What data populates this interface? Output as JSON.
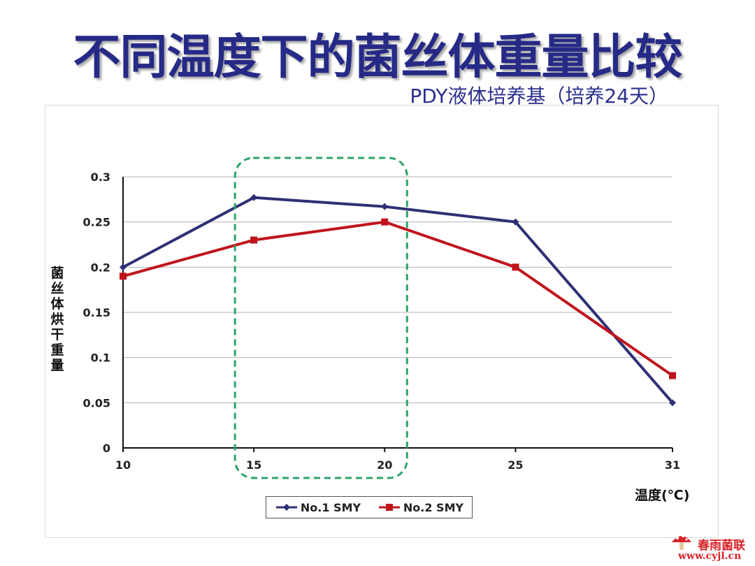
{
  "slide": {
    "title": "不同温度下的菌丝体重量比较",
    "subtitle": "PDY液体培养基（培养24天）"
  },
  "watermark": {
    "name": "春雨菌联",
    "url": "www.cyjl.cn"
  },
  "chart_data": {
    "type": "line",
    "x": [
      10,
      15,
      20,
      25,
      31
    ],
    "categories": [
      "10",
      "15",
      "20",
      "25",
      "31"
    ],
    "series": [
      {
        "name": "No.1 SMY",
        "values": [
          0.2,
          0.277,
          0.267,
          0.25,
          0.05
        ],
        "color": "#2e3075",
        "marker": "diamond"
      },
      {
        "name": "No.2 SMY",
        "values": [
          0.19,
          0.23,
          0.25,
          0.2,
          0.08
        ],
        "color": "#c0141c",
        "marker": "square"
      }
    ],
    "xlabel": "温度(℃)",
    "ylabel": "菌丝体烘干重量",
    "ylim": [
      0,
      0.3
    ],
    "yticks": [
      "0",
      "0.05",
      "0.1",
      "0.15",
      "0.2",
      "0.25",
      "0.3"
    ],
    "grid": true,
    "legend": "bottom",
    "highlight": {
      "x_from": 15,
      "x_to": 20,
      "color": "#2da36a",
      "style": "dashed"
    }
  }
}
